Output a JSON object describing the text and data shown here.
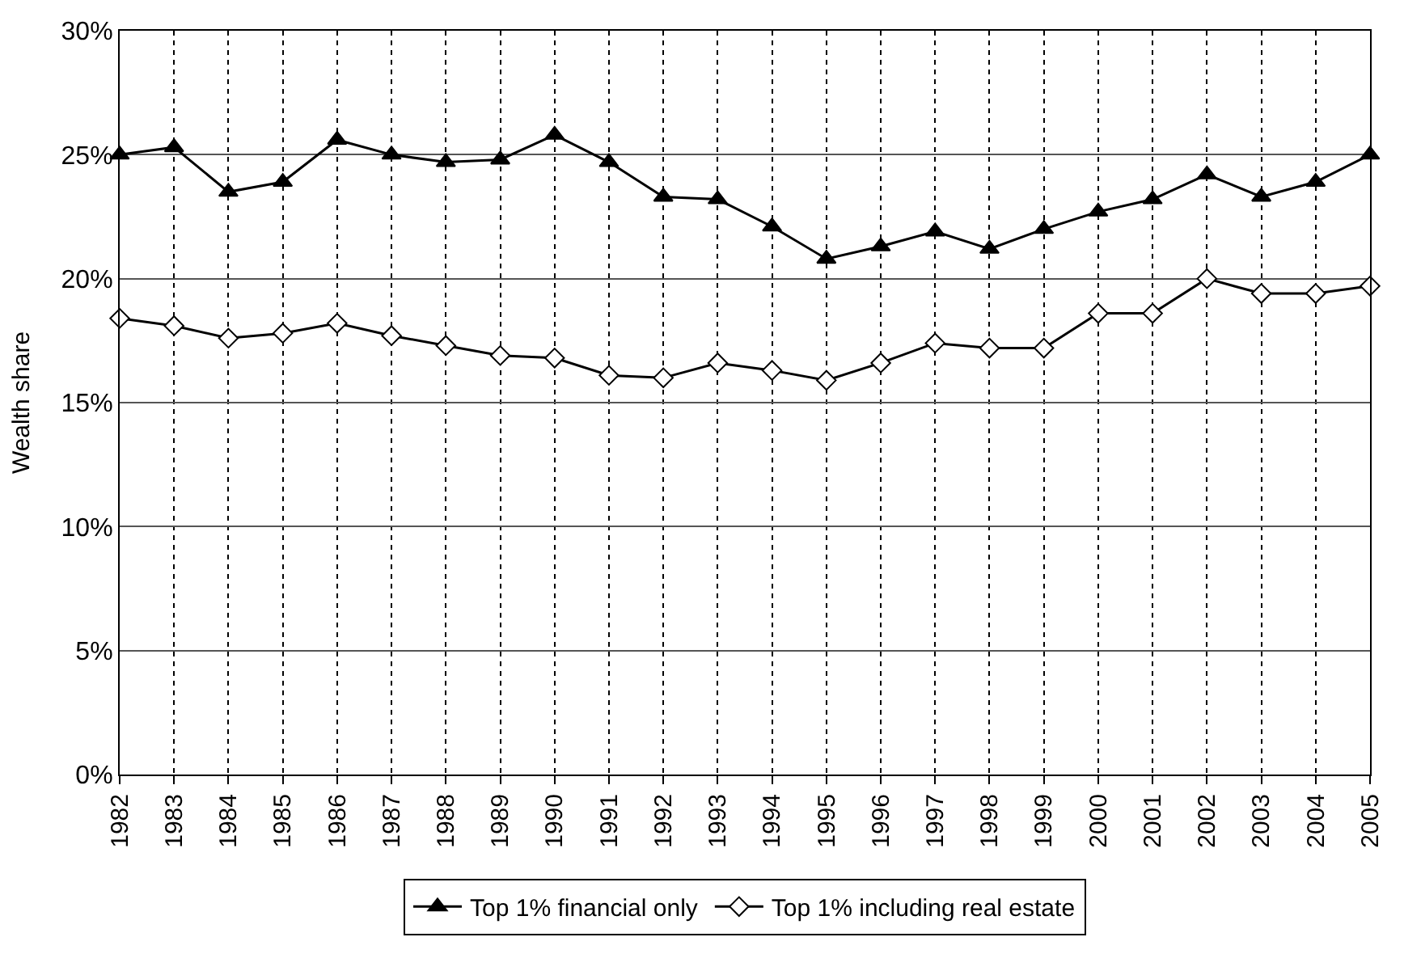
{
  "chart_data": {
    "type": "line",
    "ylabel": "Wealth share",
    "categories": [
      "1982",
      "1983",
      "1984",
      "1985",
      "1986",
      "1987",
      "1988",
      "1989",
      "1990",
      "1991",
      "1992",
      "1993",
      "1994",
      "1995",
      "1996",
      "1997",
      "1998",
      "1999",
      "2000",
      "2001",
      "2002",
      "2003",
      "2004",
      "2005"
    ],
    "series": [
      {
        "name": "Top 1% financial only",
        "color": "#000000",
        "marker": "triangle",
        "values": [
          25.0,
          25.3,
          23.5,
          23.9,
          25.6,
          25.0,
          24.7,
          24.8,
          25.8,
          24.7,
          23.3,
          23.2,
          22.1,
          20.8,
          21.3,
          21.9,
          21.2,
          22.0,
          22.7,
          23.2,
          24.2,
          23.3,
          23.9,
          25.0
        ]
      },
      {
        "name": "Top 1% including real estate",
        "color": "#000000",
        "marker": "diamond",
        "values": [
          18.4,
          18.1,
          17.6,
          17.8,
          18.2,
          17.7,
          17.3,
          16.9,
          16.8,
          16.1,
          16.0,
          16.6,
          16.3,
          15.9,
          16.6,
          17.4,
          17.2,
          17.2,
          18.6,
          18.6,
          20.0,
          19.4,
          19.4,
          19.7
        ]
      }
    ],
    "ylim": [
      0,
      30
    ],
    "yticks": [
      {
        "value": 0,
        "label": "0%"
      },
      {
        "value": 5,
        "label": "5%"
      },
      {
        "value": 10,
        "label": "10%"
      },
      {
        "value": 15,
        "label": "15%"
      },
      {
        "value": 20,
        "label": "20%"
      },
      {
        "value": 25,
        "label": "25%"
      },
      {
        "value": 30,
        "label": "30%"
      }
    ],
    "grid": true,
    "legend": "bottom",
    "line_style": "solid"
  }
}
